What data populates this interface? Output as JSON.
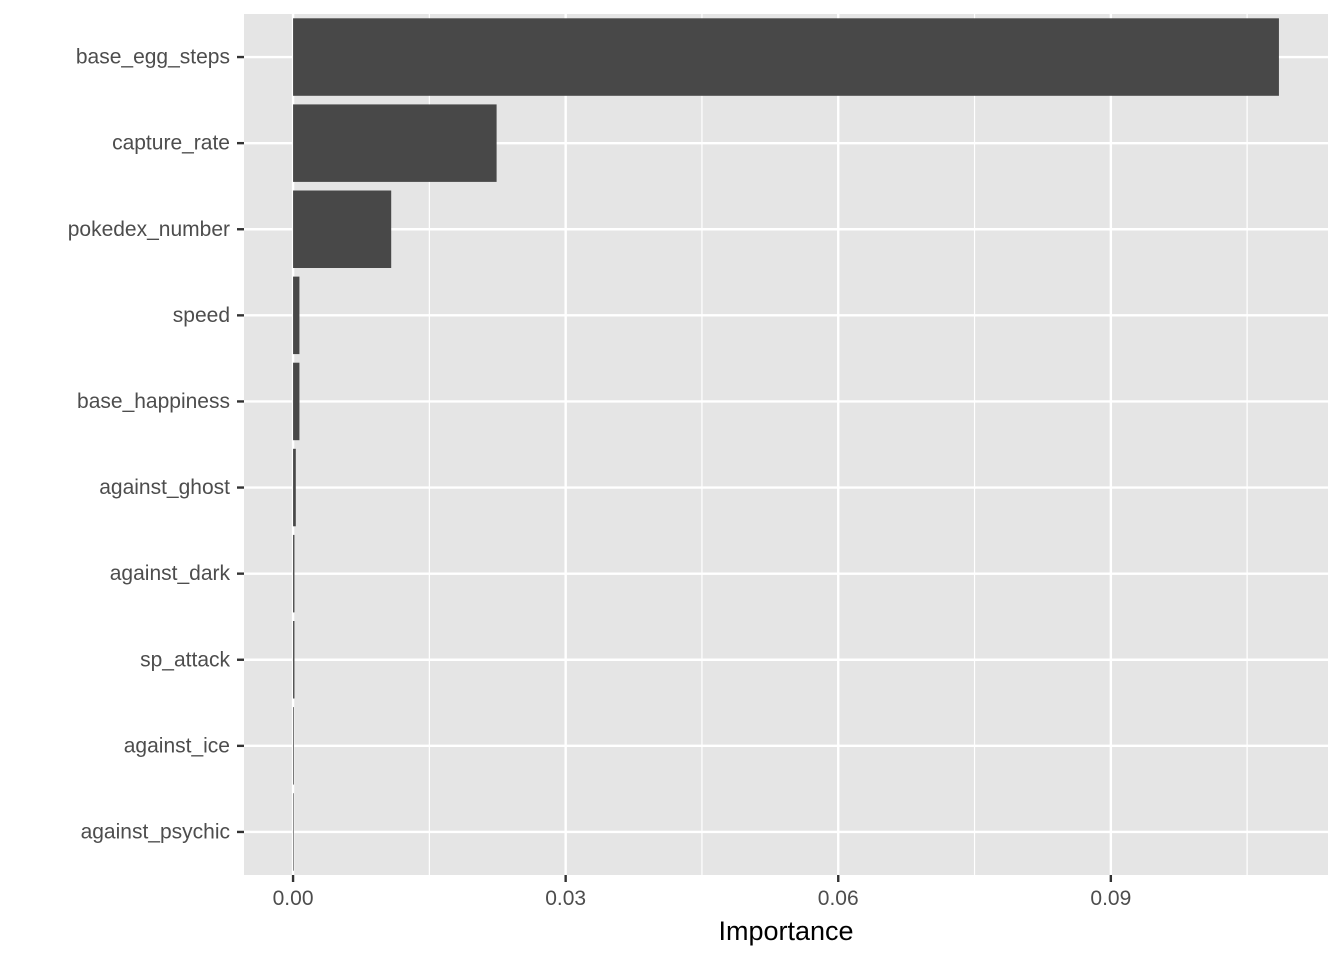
{
  "chart_data": {
    "type": "bar",
    "orientation": "horizontal",
    "categories": [
      "base_egg_steps",
      "capture_rate",
      "pokedex_number",
      "speed",
      "base_happiness",
      "against_ghost",
      "against_dark",
      "sp_attack",
      "against_ice",
      "against_psychic"
    ],
    "values": [
      0.1085,
      0.0224,
      0.0108,
      0.0007,
      0.0007,
      0.0003,
      0.00015,
      0.00015,
      8e-05,
      5e-05
    ],
    "title": "",
    "xlabel": "Importance",
    "ylabel": "",
    "xlim": [
      -0.0054,
      0.1139
    ],
    "xticks": [
      0.0,
      0.03,
      0.06,
      0.09
    ],
    "xtick_labels": [
      "0.00",
      "0.03",
      "0.06",
      "0.09"
    ],
    "grid": true,
    "legend": "none",
    "colors": {
      "panel_background": "#e5e5e5",
      "grid_line": "#ffffff",
      "bar_fill": "#484848",
      "tick_mark": "#333333",
      "tick_text": "#4d4d4d",
      "axis_title": "#000000"
    }
  }
}
